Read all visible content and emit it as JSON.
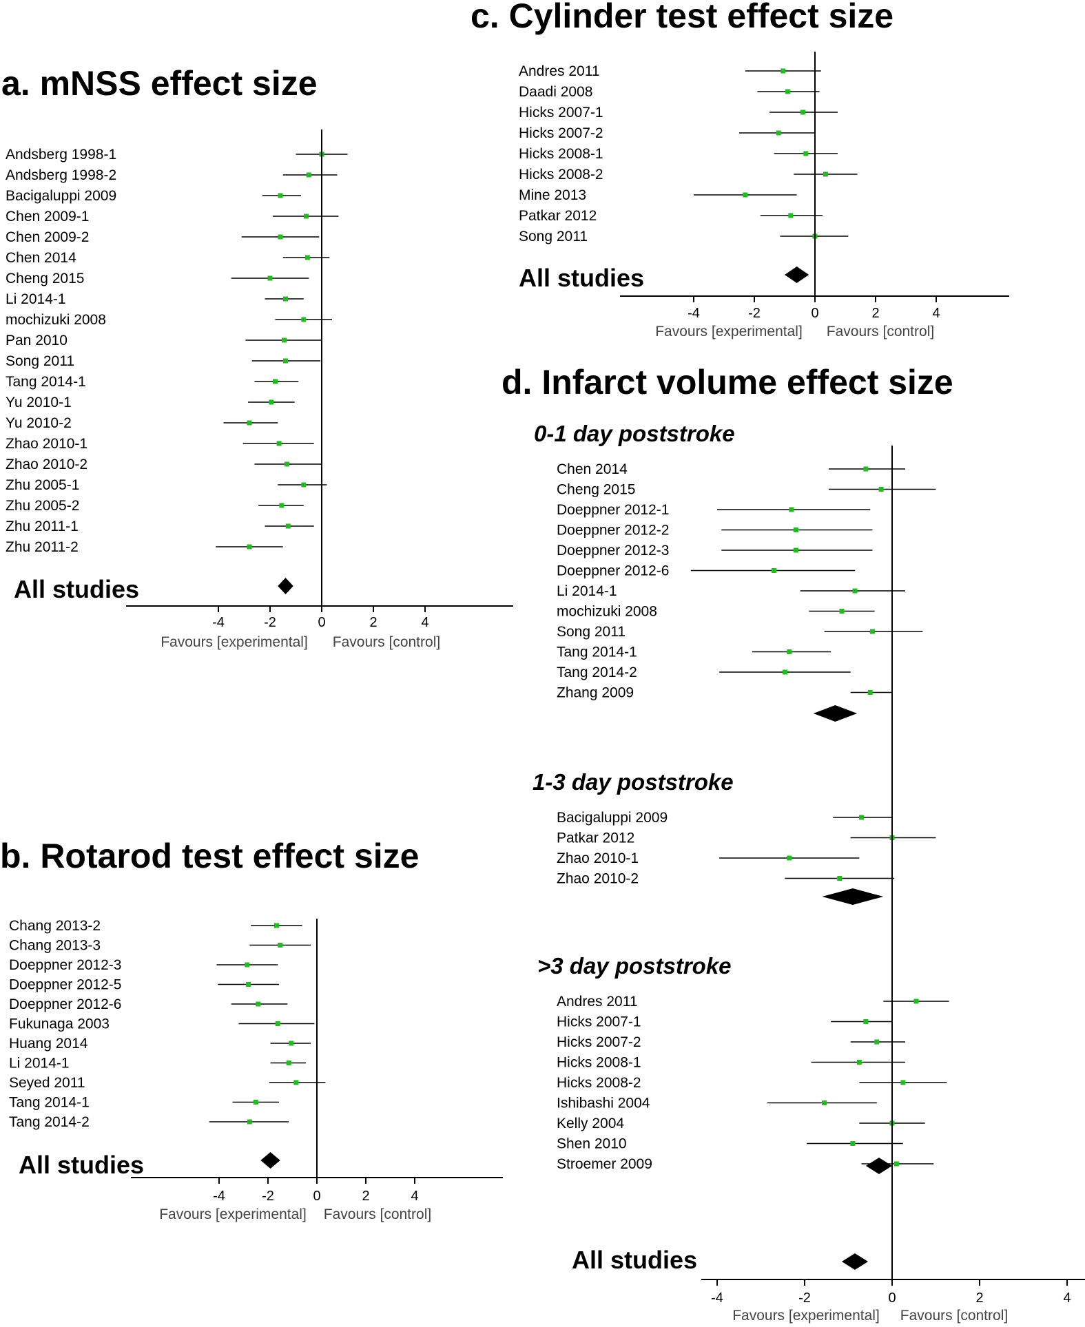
{
  "colors": {
    "point": "#22bb22",
    "line": "#000000",
    "diamond": "#000000",
    "label_secondary": "#444444"
  },
  "chart_data": [
    {
      "type": "forest",
      "title": "a. mNSS effect size",
      "studies": [
        {
          "label": "Andsberg 1998-1",
          "est": 0.0,
          "lo": -1.0,
          "hi": 1.0
        },
        {
          "label": "Andsberg 1998-2",
          "est": -0.5,
          "lo": -1.5,
          "hi": 0.6
        },
        {
          "label": "Bacigaluppi 2009",
          "est": -1.6,
          "lo": -2.3,
          "hi": -0.8
        },
        {
          "label": "Chen 2009-1",
          "est": -0.6,
          "lo": -1.9,
          "hi": 0.65
        },
        {
          "label": "Chen 2009-2",
          "est": -1.6,
          "lo": -3.1,
          "hi": -0.1
        },
        {
          "label": "Chen 2014",
          "est": -0.55,
          "lo": -1.5,
          "hi": 0.3
        },
        {
          "label": "Cheng 2015",
          "est": -2.0,
          "lo": -3.5,
          "hi": -0.5
        },
        {
          "label": "Li 2014-1",
          "est": -1.4,
          "lo": -2.2,
          "hi": -0.7
        },
        {
          "label": "mochizuki 2008",
          "est": -0.7,
          "lo": -1.8,
          "hi": 0.4
        },
        {
          "label": "Pan 2010",
          "est": -1.45,
          "lo": -2.95,
          "hi": 0.0
        },
        {
          "label": "Song 2011",
          "est": -1.4,
          "lo": -2.7,
          "hi": -0.05
        },
        {
          "label": "Tang 2014-1",
          "est": -1.8,
          "lo": -2.6,
          "hi": -0.9
        },
        {
          "label": "Yu 2010-1",
          "est": -1.95,
          "lo": -2.85,
          "hi": -1.05
        },
        {
          "label": "Yu 2010-2",
          "est": -2.8,
          "lo": -3.8,
          "hi": -1.7
        },
        {
          "label": "Zhao 2010-1",
          "est": -1.65,
          "lo": -3.05,
          "hi": -0.3
        },
        {
          "label": "Zhao 2010-2",
          "est": -1.35,
          "lo": -2.6,
          "hi": 0.0
        },
        {
          "label": "Zhu 2005-1",
          "est": -0.7,
          "lo": -1.7,
          "hi": 0.2
        },
        {
          "label": "Zhu 2005-2",
          "est": -1.55,
          "lo": -2.45,
          "hi": -0.7
        },
        {
          "label": "Zhu 2011-1",
          "est": -1.3,
          "lo": -2.2,
          "hi": -0.3
        },
        {
          "label": "Zhu 2011-2",
          "est": -2.8,
          "lo": -4.1,
          "hi": -1.5
        }
      ],
      "pooled_label": "All studies",
      "pooled": {
        "est": -1.4,
        "lo": -1.7,
        "hi": -1.1
      },
      "xticks": [
        -4,
        -2,
        0,
        2,
        4
      ],
      "xlim": [
        -7.4,
        7.4
      ],
      "favours_left": "Favours [experimental]",
      "favours_right": "Favours [control]"
    },
    {
      "type": "forest",
      "title": "b. Rotarod test effect size",
      "studies": [
        {
          "label": "Chang 2013-2",
          "est": -1.65,
          "lo": -2.7,
          "hi": -0.6
        },
        {
          "label": "Chang 2013-3",
          "est": -1.5,
          "lo": -2.75,
          "hi": -0.25
        },
        {
          "label": "Doeppner 2012-3",
          "est": -2.85,
          "lo": -4.1,
          "hi": -1.6
        },
        {
          "label": "Doeppner 2012-5",
          "est": -2.8,
          "lo": -4.05,
          "hi": -1.55
        },
        {
          "label": "Doeppner 2012-6",
          "est": -2.4,
          "lo": -3.5,
          "hi": -1.2
        },
        {
          "label": "Fukunaga 2003",
          "est": -1.6,
          "lo": -3.2,
          "hi": -0.1
        },
        {
          "label": "Huang 2014",
          "est": -1.05,
          "lo": -1.9,
          "hi": -0.25
        },
        {
          "label": "Li 2014-1",
          "est": -1.15,
          "lo": -1.9,
          "hi": -0.45
        },
        {
          "label": "Seyed 2011",
          "est": -0.85,
          "lo": -1.95,
          "hi": 0.35
        },
        {
          "label": "Tang 2014-1",
          "est": -2.5,
          "lo": -3.45,
          "hi": -1.55
        },
        {
          "label": "Tang 2014-2",
          "est": -2.75,
          "lo": -4.4,
          "hi": -1.15
        }
      ],
      "pooled_label": "All studies",
      "pooled": {
        "est": -1.9,
        "lo": -2.3,
        "hi": -1.5
      },
      "xticks": [
        -4,
        -2,
        0,
        2,
        4
      ],
      "xlim": [
        -7.4,
        7.4
      ],
      "favours_left": "Favours [experimental]",
      "favours_right": "Favours [control]"
    },
    {
      "type": "forest",
      "title": "c. Cylinder test effect size",
      "studies": [
        {
          "label": "Andres 2011",
          "est": -1.05,
          "lo": -2.3,
          "hi": 0.2
        },
        {
          "label": "Daadi 2008",
          "est": -0.9,
          "lo": -1.9,
          "hi": 0.15
        },
        {
          "label": "Hicks 2007-1",
          "est": -0.4,
          "lo": -1.5,
          "hi": 0.75
        },
        {
          "label": "Hicks 2007-2",
          "est": -1.2,
          "lo": -2.5,
          "hi": 0.0
        },
        {
          "label": "Hicks 2008-1",
          "est": -0.3,
          "lo": -1.35,
          "hi": 0.75
        },
        {
          "label": "Hicks 2008-2",
          "est": 0.35,
          "lo": -0.7,
          "hi": 1.4
        },
        {
          "label": "Mine 2013",
          "est": -2.3,
          "lo": -4.0,
          "hi": -0.6
        },
        {
          "label": "Patkar 2012",
          "est": -0.8,
          "lo": -1.8,
          "hi": 0.25
        },
        {
          "label": "Song 2011",
          "est": 0.0,
          "lo": -1.15,
          "hi": 1.1
        }
      ],
      "pooled_label": "All studies",
      "pooled": {
        "est": -0.6,
        "lo": -1.0,
        "hi": -0.2
      },
      "xticks": [
        -4,
        -2,
        0,
        2,
        4
      ],
      "xlim": [
        -5.1,
        6.3
      ],
      "favours_left": "Favours [experimental]",
      "favours_right": "Favours [control]"
    },
    {
      "type": "forest",
      "title": "d. Infarct volume effect size",
      "subgroups": [
        {
          "name": "0-1 day poststroke",
          "studies": [
            {
              "label": "Chen 2014",
              "est": -0.6,
              "lo": -1.45,
              "hi": 0.3
            },
            {
              "label": "Cheng 2015",
              "est": -0.25,
              "lo": -1.45,
              "hi": 1.0
            },
            {
              "label": "Doeppner 2012-1",
              "est": -2.3,
              "lo": -4.0,
              "hi": -0.5
            },
            {
              "label": "Doeppner 2012-2",
              "est": -2.2,
              "lo": -3.9,
              "hi": -0.45
            },
            {
              "label": "Doeppner 2012-3",
              "est": -2.2,
              "lo": -3.9,
              "hi": -0.45
            },
            {
              "label": "Doeppner 2012-6",
              "est": -2.7,
              "lo": -4.6,
              "hi": -0.85
            },
            {
              "label": "Li 2014-1",
              "est": -0.85,
              "lo": -2.1,
              "hi": 0.3
            },
            {
              "label": "mochizuki 2008",
              "est": -1.15,
              "lo": -1.9,
              "hi": -0.4
            },
            {
              "label": "Song 2011",
              "est": -0.45,
              "lo": -1.55,
              "hi": 0.7
            },
            {
              "label": "Tang 2014-1",
              "est": -2.35,
              "lo": -3.2,
              "hi": -1.4
            },
            {
              "label": "Tang 2014-2",
              "est": -2.45,
              "lo": -3.95,
              "hi": -0.95
            },
            {
              "label": "Zhang 2009",
              "est": -0.5,
              "lo": -0.95,
              "hi": 0.0
            }
          ],
          "pooled": {
            "est": -1.3,
            "lo": -1.8,
            "hi": -0.8
          }
        },
        {
          "name": "1-3 day poststroke",
          "studies": [
            {
              "label": "Bacigaluppi 2009",
              "est": -0.7,
              "lo": -1.35,
              "hi": 0.0
            },
            {
              "label": "Patkar 2012",
              "est": 0.0,
              "lo": -0.95,
              "hi": 1.0
            },
            {
              "label": "Zhao 2010-1",
              "est": -2.35,
              "lo": -3.95,
              "hi": -0.75
            },
            {
              "label": "Zhao 2010-2",
              "est": -1.2,
              "lo": -2.45,
              "hi": 0.05
            }
          ],
          "pooled": {
            "est": -0.9,
            "lo": -1.6,
            "hi": -0.2
          }
        },
        {
          "name": ">3 day poststroke",
          "studies": [
            {
              "label": "Andres 2011",
              "est": 0.55,
              "lo": -0.2,
              "hi": 1.3
            },
            {
              "label": "Hicks 2007-1",
              "est": -0.6,
              "lo": -1.4,
              "hi": 0.0
            },
            {
              "label": "Hicks 2007-2",
              "est": -0.35,
              "lo": -0.95,
              "hi": 0.3
            },
            {
              "label": "Hicks 2008-1",
              "est": -0.75,
              "lo": -1.85,
              "hi": 0.3
            },
            {
              "label": "Hicks 2008-2",
              "est": 0.25,
              "lo": -0.75,
              "hi": 1.25
            },
            {
              "label": "Ishibashi 2004",
              "est": -1.55,
              "lo": -2.85,
              "hi": -0.35
            },
            {
              "label": "Kelly 2004",
              "est": 0.0,
              "lo": -0.75,
              "hi": 0.75
            },
            {
              "label": "Shen 2010",
              "est": -0.9,
              "lo": -1.95,
              "hi": 0.25
            },
            {
              "label": "Stroemer 2009",
              "est": 0.1,
              "lo": -0.7,
              "hi": 0.95
            }
          ],
          "pooled": {
            "est": -0.3,
            "lo": -0.6,
            "hi": 0.0
          }
        }
      ],
      "pooled_label": "All studies",
      "pooled": {
        "est": -0.85,
        "lo": -1.15,
        "hi": -0.55
      },
      "xticks": [
        -4,
        -2,
        0,
        2,
        4
      ],
      "xlim": [
        -8.7,
        4.8
      ],
      "favours_left": "Favours [experimental]",
      "favours_right": "Favours [control]"
    }
  ]
}
